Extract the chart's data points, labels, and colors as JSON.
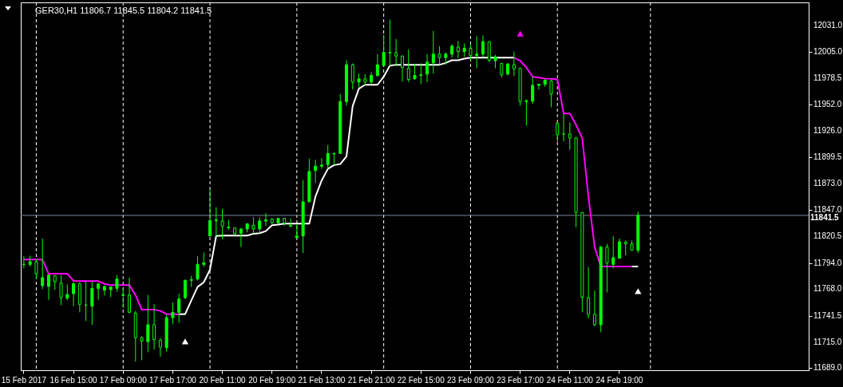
{
  "chart_data": {
    "type": "candlestick",
    "title": "GER30,H1  11806.7 11845.5 11804.2 11841.5",
    "color": "#00ff00",
    "categories": [
      "15 Feb 2017",
      null,
      null,
      null,
      null,
      null,
      null,
      null,
      "16 Feb 15:00",
      null,
      null,
      null,
      null,
      null,
      null,
      null,
      "17 Feb 09:00",
      null,
      null,
      null,
      null,
      null,
      null,
      null,
      "17 Feb 17:00",
      null,
      null,
      null,
      null,
      null,
      null,
      null,
      "20 Feb 11:00",
      null,
      null,
      null,
      null,
      null,
      null,
      null,
      "20 Feb 19:00",
      null,
      null,
      null,
      null,
      null,
      null,
      null,
      "21 Feb 13:00",
      null,
      null,
      null,
      null,
      null,
      null,
      null,
      "21 Feb 21:00",
      null,
      null,
      null,
      null,
      null,
      null,
      null,
      "22 Feb 15:00",
      null,
      null,
      null,
      null,
      null,
      null,
      null,
      "23 Feb 09:00",
      null,
      null,
      null,
      null,
      null,
      null,
      null,
      "23 Feb 17:00",
      null,
      null,
      null,
      null,
      null,
      null,
      null,
      "24 Feb 11:00",
      null,
      null,
      null,
      null,
      null,
      null,
      null,
      "24 Feb 19:00",
      null,
      null,
      null,
      null,
      null,
      null,
      null,
      null,
      null,
      null,
      null,
      null,
      null,
      null,
      null,
      null,
      null,
      null,
      null,
      null,
      null,
      null,
      null,
      null,
      null,
      null,
      null,
      null,
      null,
      null
    ],
    "ohlc": [
      [
        11792.6,
        11800.6,
        11788.6,
        11792.6
      ],
      [
        11792.6,
        11801.4,
        11790.5,
        11795.3
      ],
      [
        11795.3,
        11797.9,
        11778.0,
        11783.3
      ],
      [
        11771.4,
        11818.4,
        11767.9,
        11779.4
      ],
      [
        11770.6,
        11782.0,
        11757.3,
        11782.0
      ],
      [
        11781.2,
        11782.0,
        11767.4,
        11775.4
      ],
      [
        11774.0,
        11782.0,
        11752.0,
        11759.4
      ],
      [
        11758.9,
        11772.7,
        11756.8,
        11762.6
      ],
      [
        11763.4,
        11774.6,
        11750.9,
        11773.2
      ],
      [
        11773.2,
        11774.6,
        11744.8,
        11752.8
      ],
      [
        11752.0,
        11775.4,
        11736.1,
        11752.0
      ],
      [
        11750.9,
        11775.4,
        11732.4,
        11768.7
      ],
      [
        11768.7,
        11774.0,
        11757.3,
        11773.2
      ],
      [
        11766.9,
        11771.4,
        11761.6,
        11770.6
      ],
      [
        11767.4,
        11770.1,
        11760.0,
        11770.1
      ],
      [
        11768.7,
        11782.0,
        11765.3,
        11778.0
      ],
      [
        11761.6,
        11768.7,
        11749.4,
        11762.1
      ],
      [
        11762.1,
        11779.4,
        11744.0,
        11744.8
      ],
      [
        11744.0,
        11746.2,
        11695.7,
        11719.6
      ],
      [
        11719.6,
        11720.9,
        11697.0,
        11716.2
      ],
      [
        11715.6,
        11762.1,
        11705.0,
        11732.4
      ],
      [
        11732.4,
        11752.8,
        11707.7,
        11717.5
      ],
      [
        11717.0,
        11719.1,
        11700.5,
        11710.1
      ],
      [
        11709.5,
        11742.2,
        11705.8,
        11739.5
      ],
      [
        11739.5,
        11754.7,
        11732.9,
        11744.8
      ],
      [
        11744.8,
        11763.4,
        11734.2,
        11758.1
      ],
      [
        11759.4,
        11777.5,
        11758.1,
        11776.7
      ],
      [
        11777.5,
        11781.2,
        11770.1,
        11776.7
      ],
      [
        11778.0,
        11800.6,
        11776.7,
        11792.6
      ],
      [
        11792.6,
        11804.6,
        11790.0,
        11794.0
      ],
      [
        11821.0,
        11867.0,
        11821.0,
        11836.4
      ],
      [
        11836.4,
        11849.7,
        11820.5,
        11837.0
      ],
      [
        11835.9,
        11847.8,
        11817.8,
        11830.6
      ],
      [
        11829.8,
        11837.0,
        11827.1,
        11829.0
      ],
      [
        11829.0,
        11829.0,
        11821.8,
        11823.2
      ],
      [
        11823.7,
        11829.0,
        11809.9,
        11827.9
      ],
      [
        11827.9,
        11833.2,
        11824.5,
        11833.2
      ],
      [
        11831.7,
        11839.6,
        11823.7,
        11827.9
      ],
      [
        11827.9,
        11839.6,
        11823.7,
        11835.9
      ],
      [
        11835.9,
        11843.6,
        11831.1,
        11837.0
      ],
      [
        11837.8,
        11838.6,
        11832.5,
        11834.3
      ],
      [
        11833.8,
        11838.6,
        11833.8,
        11838.6
      ],
      [
        11838.6,
        11838.6,
        11831.1,
        11833.8
      ],
      [
        11831.7,
        11838.6,
        11829.8,
        11830.6
      ],
      [
        11819.2,
        11832.5,
        11819.2,
        11821.0
      ],
      [
        11821.0,
        11876.8,
        11804.0,
        11855.0
      ],
      [
        11855.0,
        11898.0,
        11855.0,
        11885.3
      ],
      [
        11886.3,
        11897.0,
        11874.1,
        11890.6
      ],
      [
        11890.6,
        11898.8,
        11887.9,
        11891.7
      ],
      [
        11892.2,
        11911.6,
        11887.9,
        11903.3
      ],
      [
        11903.3,
        11904.1,
        11891.7,
        11902.8
      ],
      [
        11903.3,
        11962.5,
        11903.3,
        11955.1
      ],
      [
        11955.1,
        11996.3,
        11951.1,
        11991.8
      ],
      [
        11991.8,
        11993.1,
        11967.1,
        11974.5
      ],
      [
        11974.5,
        11983.0,
        11969.2,
        11977.7
      ],
      [
        11977.7,
        11982.5,
        11971.3,
        11974.5
      ],
      [
        11974.5,
        11984.6,
        11972.4,
        11981.1
      ],
      [
        11981.1,
        12002.4,
        11979.8,
        11991.8
      ],
      [
        11991.0,
        12021.5,
        11990.4,
        12004.2
      ],
      [
        12004.2,
        12036.9,
        11990.4,
        12003.7
      ],
      [
        12003.7,
        12017.5,
        11990.4,
        12000.5
      ],
      [
        12000.5,
        12001.0,
        11975.0,
        11989.1
      ],
      [
        11988.3,
        12006.9,
        11974.5,
        11977.1
      ],
      [
        11977.7,
        11992.5,
        11977.1,
        11981.1
      ],
      [
        11981.1,
        11993.1,
        11972.4,
        11981.7
      ],
      [
        11982.5,
        12002.4,
        11974.5,
        11994.4
      ],
      [
        11993.6,
        12025.5,
        11983.0,
        12002.4
      ],
      [
        12002.4,
        12010.3,
        11991.8,
        11998.9
      ],
      [
        11998.9,
        12004.2,
        11991.8,
        12002.4
      ],
      [
        12002.4,
        12012.2,
        11998.9,
        12010.3
      ],
      [
        12009.5,
        12015.6,
        11998.4,
        12005.0
      ],
      [
        12005.0,
        12013.0,
        11999.7,
        12008.2
      ],
      [
        12008.2,
        12012.2,
        11996.3,
        12001.0
      ],
      [
        12001.0,
        12020.2,
        11988.3,
        12002.4
      ],
      [
        12002.4,
        12021.0,
        11999.7,
        12014.9
      ],
      [
        12014.9,
        12014.9,
        11994.4,
        11996.3
      ],
      [
        11995.7,
        12001.6,
        11988.3,
        11999.7
      ],
      [
        11993.1,
        11993.1,
        11979.3,
        11981.7
      ],
      [
        11982.5,
        11993.6,
        11981.1,
        11992.5
      ],
      [
        11991.8,
        12005.0,
        11980.6,
        11987.8
      ],
      [
        11988.3,
        11988.3,
        11951.1,
        11955.1
      ],
      [
        11955.1,
        11957.2,
        11931.2,
        11955.9
      ],
      [
        11955.4,
        11979.8,
        11952.7,
        11971.3
      ],
      [
        11971.3,
        11972.4,
        11967.1,
        11972.4
      ],
      [
        11972.4,
        11976.6,
        11969.7,
        11976.6
      ],
      [
        11975.8,
        11977.1,
        11949.3,
        11962.5
      ],
      [
        11933.3,
        11934.7,
        11914.8,
        11921.9
      ],
      [
        11922.7,
        11942.6,
        11915.3,
        11922.7
      ],
      [
        11922.7,
        11934.1,
        11906.8,
        11918.7
      ],
      [
        11918.7,
        11919.5,
        11829.8,
        11844.4
      ],
      [
        11844.4,
        11844.9,
        11744.8,
        11759.9
      ],
      [
        11759.4,
        11790.0,
        11738.7,
        11742.7
      ],
      [
        11742.7,
        11766.5,
        11730.8,
        11732.4
      ],
      [
        11732.4,
        11811.2,
        11724.9,
        11809.9
      ],
      [
        11809.9,
        11813.1,
        11764.7,
        11794.0
      ],
      [
        11792.6,
        11821.0,
        11788.6,
        11799.3
      ],
      [
        11798.7,
        11818.4,
        11798.7,
        11815.2
      ],
      [
        11814.7,
        11816.5,
        11801.4,
        11813.1
      ],
      [
        11813.1,
        11816.5,
        11806.7,
        11806.7
      ],
      [
        11806.7,
        11845.5,
        11804.2,
        11841.5
      ],
      null,
      null,
      null,
      null,
      null,
      null,
      null,
      null,
      null,
      null,
      null,
      null,
      null,
      null,
      null,
      null,
      null,
      null,
      null,
      null,
      null,
      null,
      null,
      null,
      null,
      null,
      null
    ],
    "series": [
      {
        "type": "line",
        "color": "#ff00ff",
        "values": [
          11797.4,
          11797.4,
          11797.4,
          11797.4,
          11783.3,
          11783.3,
          11783.3,
          11783.3,
          11776.2,
          11775.9,
          11775.9,
          11775.9,
          11775.9,
          11773.2,
          11771.9,
          11771.9,
          11771.9,
          11771.9,
          11762.1,
          11747.5,
          11747.5,
          11747.5,
          11746.2,
          11743.0,
          11743.0,
          11743.0,
          null,
          null,
          null,
          null,
          null,
          null,
          null,
          null,
          null,
          null,
          null,
          null,
          null,
          null,
          null,
          null,
          null,
          null,
          null,
          null,
          null,
          null,
          null,
          null,
          null,
          null,
          null,
          null,
          null,
          null,
          null,
          null,
          null,
          null,
          null,
          null,
          null,
          null,
          null,
          null,
          null,
          null,
          null,
          null,
          null,
          null,
          null,
          null,
          null,
          null,
          null,
          null,
          null,
          11998.9,
          11995.7,
          11989.1,
          11979.8,
          11979.0,
          11977.9,
          11977.7,
          11977.1,
          11943.2,
          11943.2,
          11932.0,
          11918.7,
          11860.3,
          11809.9,
          11790.5,
          11790.5,
          11790.5,
          11790.5,
          11790.5,
          11790.5,
          null,
          null,
          null,
          null,
          null,
          null,
          null,
          null,
          null,
          null,
          null,
          null,
          null,
          null,
          null,
          null,
          null,
          null,
          null,
          null,
          null,
          null,
          null,
          null,
          null,
          null,
          null,
          null
        ]
      },
      {
        "type": "line",
        "color": "#ffffff",
        "values": [
          null,
          null,
          null,
          null,
          null,
          null,
          null,
          null,
          null,
          null,
          null,
          null,
          null,
          null,
          null,
          null,
          null,
          null,
          null,
          null,
          null,
          null,
          null,
          null,
          null,
          11743.0,
          11743.0,
          11756.8,
          11770.1,
          11774.8,
          11787.3,
          11821.0,
          11821.3,
          11821.3,
          11821.3,
          11821.3,
          11821.3,
          11823.2,
          11823.7,
          11825.8,
          11831.7,
          11832.2,
          11833.2,
          11833.2,
          11833.2,
          11833.2,
          11833.2,
          11860.3,
          11876.3,
          11887.9,
          11891.7,
          11892.7,
          11900.2,
          11950.6,
          11967.9,
          11971.8,
          11971.8,
          11971.8,
          11979.8,
          11991.0,
          11991.8,
          11991.8,
          11991.8,
          11991.8,
          11991.8,
          11991.8,
          11991.8,
          11991.8,
          11993.6,
          11996.3,
          11996.3,
          11997.9,
          11998.9,
          11998.9,
          11998.9,
          11998.9,
          11998.9,
          11998.9,
          11998.9,
          11998.9,
          null,
          null,
          null,
          null,
          null,
          null,
          null,
          null,
          null,
          null,
          null,
          null,
          null,
          null,
          null,
          null,
          null,
          null,
          11790.5,
          11790.5,
          null,
          null,
          null,
          null,
          null,
          null,
          null,
          null,
          null,
          null,
          null,
          null,
          null,
          null,
          null,
          null,
          null,
          null,
          null,
          null,
          null,
          null,
          null,
          null,
          null,
          null,
          null
        ]
      },
      {
        "type": "scatter",
        "marker": "triangle",
        "color": "#ffffff",
        "values": [
          null,
          null,
          null,
          null,
          null,
          null,
          null,
          null,
          null,
          null,
          null,
          null,
          null,
          null,
          null,
          null,
          null,
          null,
          null,
          null,
          null,
          null,
          null,
          null,
          null,
          null,
          11715.8,
          null,
          null,
          null,
          null,
          null,
          null,
          null,
          null,
          null,
          null,
          null,
          null,
          null,
          null,
          null,
          null,
          null,
          null,
          null,
          null,
          null,
          null,
          null,
          null,
          null,
          null,
          null,
          null,
          null,
          null,
          null,
          null,
          null,
          null,
          null,
          null,
          null,
          null,
          null,
          null,
          null,
          null,
          null,
          null,
          null,
          null,
          null,
          null,
          null,
          null,
          null,
          null,
          null,
          null,
          null,
          null,
          null,
          null,
          null,
          null,
          null,
          null,
          null,
          null,
          null,
          null,
          null,
          null,
          null,
          null,
          null,
          null,
          11766.0,
          null,
          null,
          null,
          null,
          null,
          null,
          null,
          null,
          null,
          null,
          null,
          null,
          null,
          null,
          null,
          null,
          null,
          null,
          null,
          null,
          null,
          null,
          null,
          null,
          null,
          null,
          null
        ]
      },
      {
        "type": "scatter",
        "marker": "triangle",
        "color": "#ff00ff",
        "values": [
          null,
          null,
          null,
          null,
          null,
          null,
          null,
          null,
          null,
          null,
          null,
          null,
          null,
          null,
          null,
          null,
          null,
          null,
          null,
          null,
          null,
          null,
          null,
          null,
          null,
          null,
          null,
          null,
          null,
          null,
          null,
          null,
          null,
          null,
          null,
          null,
          null,
          null,
          null,
          null,
          null,
          null,
          null,
          null,
          null,
          null,
          null,
          null,
          null,
          null,
          null,
          null,
          null,
          null,
          null,
          null,
          null,
          null,
          null,
          null,
          null,
          null,
          null,
          null,
          null,
          null,
          null,
          null,
          null,
          null,
          null,
          null,
          null,
          null,
          null,
          null,
          null,
          null,
          null,
          null,
          12022.8,
          null,
          null,
          null,
          null,
          null,
          null,
          null,
          null,
          null,
          null,
          null,
          null,
          null,
          null,
          null,
          null,
          null,
          null,
          null,
          null,
          null,
          null,
          null,
          null,
          null,
          null,
          null,
          null,
          null,
          null,
          null,
          null,
          null,
          null,
          null,
          null,
          null,
          null,
          null,
          null,
          null,
          null,
          null,
          null,
          null,
          null
        ]
      }
    ],
    "ylim": [
      11687,
      12054
    ],
    "yticks": [
      {
        "value": 11689,
        "label": "11689.0"
      },
      {
        "value": 11715,
        "label": "11715.0"
      },
      {
        "value": 11741.5,
        "label": "11741.5"
      },
      {
        "value": 11768,
        "label": "11768.0"
      },
      {
        "value": 11794,
        "label": "11794.0"
      },
      {
        "value": 11820.5,
        "label": "11820.5"
      },
      {
        "value": 11847,
        "label": "11847.0"
      },
      {
        "value": 11873,
        "label": "11873.0"
      },
      {
        "value": 11899.5,
        "label": "11899.5"
      },
      {
        "value": 11926,
        "label": "11926.0"
      },
      {
        "value": 11952,
        "label": "11952.0"
      },
      {
        "value": 11978.5,
        "label": "11978.5"
      },
      {
        "value": 12005,
        "label": "12005.0"
      },
      {
        "value": 12031,
        "label": "12031.0"
      }
    ],
    "ref_lines": [
      {
        "axis": "y",
        "value": 11841.5,
        "label": "11841.5",
        "color": "#778899"
      }
    ]
  }
}
